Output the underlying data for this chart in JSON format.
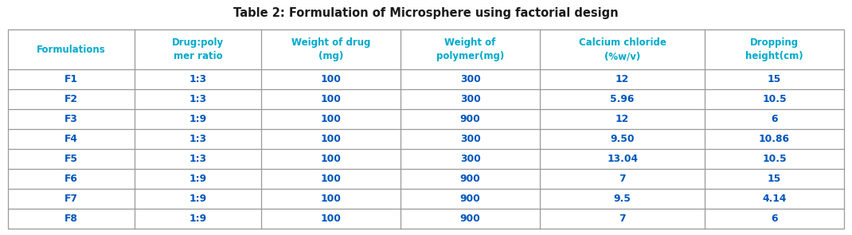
{
  "title": "Table 2: Formulation of Microsphere using factorial design",
  "title_fontsize": 10.5,
  "title_color": "#1a1a1a",
  "header_color": "#00aacc",
  "cell_text_color": "#0055bb",
  "line_color": "#999999",
  "bg_color": "#ffffff",
  "columns": [
    "Formulations",
    "Drug:poly\nmer ratio",
    "Weight of drug\n(mg)",
    "Weight of\npolymer(mg)",
    "Calcium chloride\n(%w/v)",
    "Dropping\nheight(cm)"
  ],
  "rows": [
    [
      "F1",
      "1:3",
      "100",
      "300",
      "12",
      "15"
    ],
    [
      "F2",
      "1:3",
      "100",
      "300",
      "5.96",
      "10.5"
    ],
    [
      "F3",
      "1:9",
      "100",
      "900",
      "12",
      "6"
    ],
    [
      "F4",
      "1:3",
      "100",
      "300",
      "9.50",
      "10.86"
    ],
    [
      "F5",
      "1:3",
      "100",
      "300",
      "13.04",
      "10.5"
    ],
    [
      "F6",
      "1:9",
      "100",
      "900",
      "7",
      "15"
    ],
    [
      "F7",
      "1:9",
      "100",
      "900",
      "9.5",
      "4.14"
    ],
    [
      "F8",
      "1:9",
      "100",
      "900",
      "7",
      "6"
    ]
  ],
  "col_widths_rel": [
    1.0,
    1.0,
    1.1,
    1.1,
    1.3,
    1.1
  ]
}
